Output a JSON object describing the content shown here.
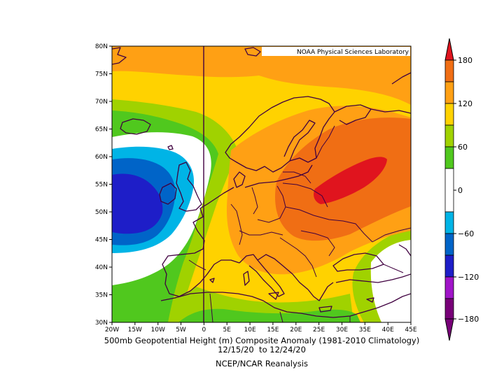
{
  "map": {
    "credit": "NOAA Physical Sciences Laboratory",
    "lat_labels": [
      "80N",
      "75N",
      "70N",
      "65N",
      "60N",
      "55N",
      "50N",
      "45N",
      "40N",
      "35N",
      "30N"
    ],
    "lon_labels": [
      "20W",
      "15W",
      "10W",
      "5W",
      "0",
      "5E",
      "10E",
      "15E",
      "20E",
      "25E",
      "30E",
      "35E",
      "40E",
      "45E"
    ],
    "title_line1": "500mb Geopotential Height (m) Composite Anomaly (1981-2010 Climatology)",
    "title_line2": "12/15/20  to 12/24/20",
    "source": "NCEP/NCAR Reanalysis",
    "projection": "equirectangular",
    "lat_range": [
      30,
      80
    ],
    "lon_range": [
      -20,
      45
    ]
  },
  "colorbar": {
    "tick_labels": [
      "180",
      "120",
      "60",
      "0",
      "−60",
      "−120",
      "−180"
    ],
    "colors": [
      "#e0141e",
      "#f06e14",
      "#ffa014",
      "#ffd200",
      "#a0d200",
      "#50c81e",
      "#ffffff",
      "#00b4e6",
      "#0064c8",
      "#1e1ec8",
      "#a014c8",
      "#780078"
    ]
  },
  "colors": {
    "c180": "#e0141e",
    "c150": "#f06e14",
    "c120": "#ffa014",
    "c90": "#ffd200",
    "c60": "#a0d200",
    "c30": "#50c81e",
    "c0": "#ffffff",
    "cm30": "#00b4e6",
    "cm60": "#0064c8",
    "cm90": "#1e1ec8",
    "coast": "#400040"
  }
}
